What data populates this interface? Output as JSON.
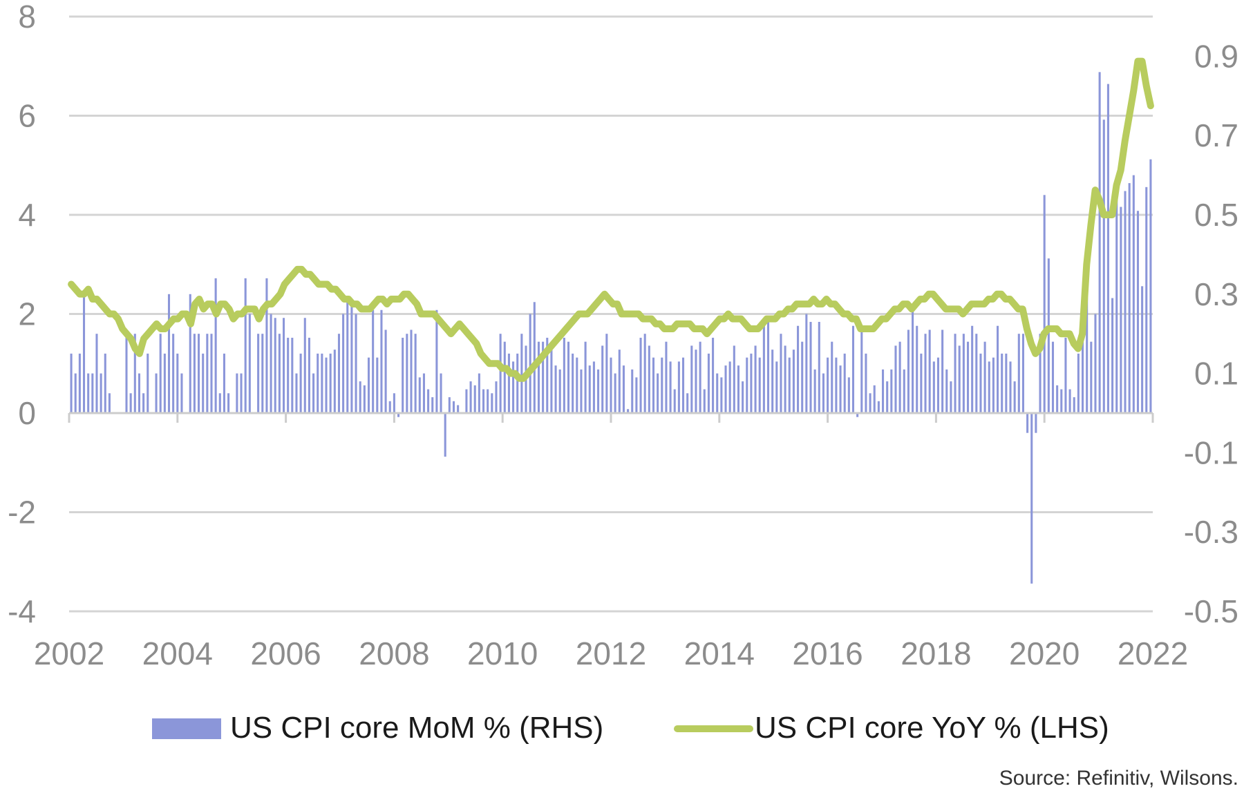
{
  "chart_data": {
    "type": "bar",
    "left_axis": {
      "ticks": [
        8,
        6,
        4,
        2,
        0,
        -2,
        -4
      ],
      "range": [
        -4,
        8
      ]
    },
    "right_axis": {
      "ticks": [
        0.9,
        0.7,
        0.5,
        0.3,
        0.1,
        -0.1,
        -0.3,
        -0.5
      ],
      "range": [
        -0.5,
        1.0
      ]
    },
    "x_axis": {
      "ticks": [
        "2002",
        "2004",
        "2006",
        "2008",
        "2010",
        "2012",
        "2014",
        "2016",
        "2018",
        "2020",
        "2022"
      ],
      "range": [
        2002,
        2022
      ]
    },
    "grid": true,
    "series": [
      {
        "name": "US CPI core MoM % (RHS)",
        "kind": "bar",
        "axis": "right",
        "color": "#8b96d9",
        "values": [
          0.15,
          0.1,
          0.15,
          0.31,
          0.1,
          0.1,
          0.2,
          0.1,
          0.15,
          0.05,
          0.0,
          0.0,
          0.0,
          0.2,
          0.05,
          0.2,
          0.1,
          0.05,
          0.15,
          0.0,
          0.1,
          0.2,
          0.15,
          0.3,
          0.2,
          0.15,
          0.1,
          0.0,
          0.3,
          0.2,
          0.2,
          0.15,
          0.2,
          0.2,
          0.34,
          0.05,
          0.15,
          0.05,
          0.0,
          0.1,
          0.1,
          0.34,
          0.25,
          0.0,
          0.2,
          0.2,
          0.34,
          0.25,
          0.24,
          0.2,
          0.24,
          0.19,
          0.19,
          0.1,
          0.15,
          0.24,
          0.19,
          0.1,
          0.15,
          0.15,
          0.14,
          0.15,
          0.16,
          0.2,
          0.25,
          0.29,
          0.28,
          0.25,
          0.08,
          0.07,
          0.14,
          0.26,
          0.14,
          0.26,
          0.21,
          0.03,
          0.05,
          -0.01,
          0.19,
          0.2,
          0.21,
          0.2,
          0.09,
          0.1,
          0.06,
          0.04,
          0.26,
          0.1,
          -0.11,
          0.04,
          0.03,
          0.02,
          0.0,
          0.06,
          0.08,
          0.07,
          0.1,
          0.06,
          0.06,
          0.05,
          0.08,
          0.2,
          0.18,
          0.15,
          0.13,
          0.15,
          0.2,
          0.17,
          0.25,
          0.28,
          0.18,
          0.18,
          0.19,
          0.17,
          0.12,
          0.11,
          0.19,
          0.18,
          0.15,
          0.14,
          0.11,
          0.18,
          0.12,
          0.13,
          0.11,
          0.17,
          0.2,
          0.14,
          0.1,
          0.16,
          0.12,
          0.01,
          0.11,
          0.09,
          0.19,
          0.2,
          0.17,
          0.14,
          0.1,
          0.14,
          0.18,
          0.13,
          0.06,
          0.13,
          0.14,
          0.05,
          0.17,
          0.16,
          0.18,
          0.06,
          0.15,
          0.19,
          0.1,
          0.09,
          0.12,
          0.13,
          0.17,
          0.12,
          0.08,
          0.14,
          0.15,
          0.17,
          0.14,
          0.24,
          0.24,
          0.16,
          0.13,
          0.2,
          0.17,
          0.14,
          0.16,
          0.22,
          0.18,
          0.25,
          0.23,
          0.11,
          0.23,
          0.1,
          0.14,
          0.18,
          0.14,
          0.12,
          0.15,
          0.09,
          0.22,
          -0.01,
          0.21,
          0.15,
          0.05,
          0.07,
          0.03,
          0.11,
          0.08,
          0.11,
          0.17,
          0.18,
          0.11,
          0.21,
          0.26,
          0.22,
          0.15,
          0.2,
          0.21,
          0.13,
          0.14,
          0.21,
          0.11,
          0.08,
          0.2,
          0.17,
          0.2,
          0.18,
          0.22,
          0.2,
          0.15,
          0.18,
          0.13,
          0.14,
          0.22,
          0.15,
          0.15,
          0.13,
          0.08,
          0.2,
          0.2,
          -0.05,
          -0.43,
          -0.05,
          0.2,
          0.55,
          0.39,
          0.18,
          0.07,
          0.06,
          0.19,
          0.06,
          0.04,
          0.15,
          0.19,
          0.3,
          0.18,
          0.25,
          0.86,
          0.74,
          0.83,
          0.29,
          0.58,
          0.52,
          0.56,
          0.58,
          0.6,
          0.51,
          0.32,
          0.57,
          0.64
        ]
      },
      {
        "name": "US CPI core YoY % (LHS)",
        "kind": "line",
        "axis": "left",
        "color": "#b8cc5e",
        "values": [
          2.6,
          2.5,
          2.4,
          2.4,
          2.5,
          2.3,
          2.3,
          2.2,
          2.1,
          2.0,
          2.0,
          1.9,
          1.7,
          1.6,
          1.5,
          1.3,
          1.2,
          1.5,
          1.6,
          1.7,
          1.8,
          1.7,
          1.7,
          1.8,
          1.9,
          1.9,
          2.0,
          2.0,
          1.8,
          2.2,
          2.3,
          2.1,
          2.2,
          2.2,
          2.0,
          2.2,
          2.2,
          2.1,
          1.9,
          2.0,
          2.0,
          2.1,
          2.1,
          2.1,
          1.9,
          2.1,
          2.2,
          2.2,
          2.3,
          2.4,
          2.6,
          2.7,
          2.8,
          2.9,
          2.9,
          2.8,
          2.8,
          2.7,
          2.6,
          2.6,
          2.6,
          2.5,
          2.5,
          2.4,
          2.3,
          2.3,
          2.2,
          2.2,
          2.1,
          2.1,
          2.1,
          2.2,
          2.3,
          2.3,
          2.2,
          2.3,
          2.3,
          2.3,
          2.4,
          2.4,
          2.3,
          2.2,
          2.0,
          2.0,
          2.0,
          2.0,
          1.9,
          1.8,
          1.7,
          1.6,
          1.7,
          1.8,
          1.7,
          1.6,
          1.5,
          1.4,
          1.2,
          1.1,
          1.0,
          1.0,
          1.0,
          0.9,
          0.9,
          0.8,
          0.8,
          0.7,
          0.7,
          0.8,
          0.9,
          1.0,
          1.1,
          1.2,
          1.3,
          1.4,
          1.5,
          1.6,
          1.7,
          1.8,
          1.9,
          2.0,
          2.0,
          2.0,
          2.1,
          2.2,
          2.3,
          2.4,
          2.3,
          2.2,
          2.2,
          2.0,
          2.0,
          2.0,
          2.0,
          2.0,
          1.9,
          1.9,
          1.9,
          1.8,
          1.8,
          1.7,
          1.7,
          1.7,
          1.8,
          1.8,
          1.8,
          1.8,
          1.7,
          1.7,
          1.7,
          1.6,
          1.7,
          1.8,
          1.9,
          1.9,
          2.0,
          1.9,
          1.9,
          1.9,
          1.8,
          1.7,
          1.7,
          1.7,
          1.8,
          1.9,
          1.9,
          1.9,
          2.0,
          2.0,
          2.1,
          2.1,
          2.2,
          2.2,
          2.2,
          2.2,
          2.3,
          2.2,
          2.2,
          2.3,
          2.2,
          2.2,
          2.1,
          2.0,
          2.0,
          1.9,
          1.9,
          1.7,
          1.7,
          1.7,
          1.7,
          1.8,
          1.9,
          1.9,
          2.0,
          2.1,
          2.1,
          2.2,
          2.2,
          2.1,
          2.2,
          2.3,
          2.3,
          2.4,
          2.4,
          2.3,
          2.2,
          2.1,
          2.1,
          2.1,
          2.1,
          2.0,
          2.1,
          2.2,
          2.2,
          2.2,
          2.2,
          2.3,
          2.3,
          2.4,
          2.4,
          2.3,
          2.3,
          2.2,
          2.1,
          2.1,
          1.7,
          1.4,
          1.2,
          1.3,
          1.6,
          1.7,
          1.7,
          1.7,
          1.6,
          1.6,
          1.6,
          1.4,
          1.3,
          1.6,
          3.0,
          3.8,
          4.5,
          4.3,
          4.0,
          4.0,
          4.0,
          4.6,
          4.9,
          5.5,
          6.0,
          6.5,
          7.1,
          7.1,
          6.6,
          6.2
        ]
      }
    ]
  },
  "legend": {
    "bar_label": "US CPI core MoM % (RHS)",
    "line_label": "US CPI core YoY % (LHS)"
  },
  "source": "Source: Refinitiv, Wilsons."
}
